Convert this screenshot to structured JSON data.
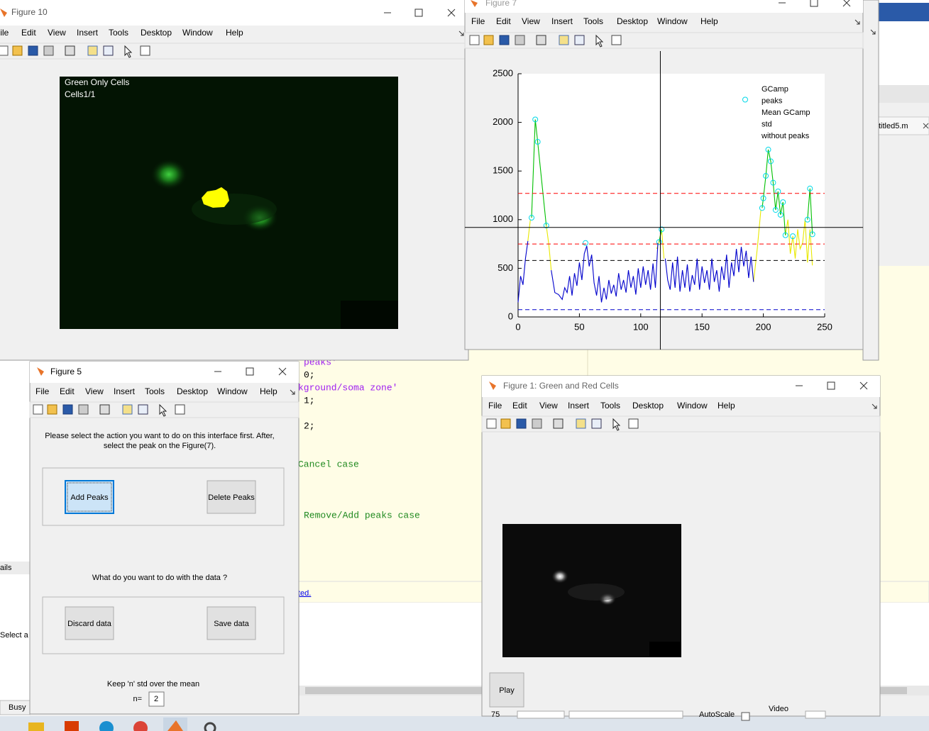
{
  "menu": [
    "File",
    "Edit",
    "View",
    "Insert",
    "Tools",
    "Desktop",
    "Window",
    "Help"
  ],
  "figure10": {
    "title": "Figure 10",
    "overlay": [
      "Green Only Cells",
      "Cells1/1"
    ]
  },
  "figure7": {
    "title": "Figure 7"
  },
  "chart_data": {
    "type": "line",
    "xlim": [
      0,
      250
    ],
    "xticks": [
      0,
      50,
      100,
      150,
      200,
      250
    ],
    "ylim": [
      0,
      2500
    ],
    "yticks": [
      0,
      500,
      1000,
      1500,
      2000,
      2500
    ],
    "legend": "northeast",
    "crosshair": {
      "x": 116,
      "y": 920
    },
    "series": [
      {
        "name": "GCamp",
        "color": "#e8e800",
        "x": [
          8,
          10,
          15,
          23,
          25,
          27,
          60,
          113,
          115,
          117,
          119,
          150,
          192,
          195,
          198,
          210,
          218,
          220,
          222,
          224,
          226,
          228,
          230,
          232,
          234,
          236,
          238,
          240
        ],
        "values": [
          780,
          1000,
          null,
          940,
          750,
          480,
          null,
          700,
          770,
          900,
          600,
          null,
          360,
          700,
          1100,
          null,
          840,
          1000,
          650,
          830,
          600,
          900,
          700,
          760,
          1000,
          560,
          900,
          530
        ]
      },
      {
        "name": "peaks",
        "color": "#00c000",
        "marker_color": "#00d8e8",
        "x": [
          11,
          14,
          16,
          23,
          40,
          55,
          80,
          115,
          117,
          150,
          199,
          200,
          202,
          204,
          206,
          208,
          210,
          212,
          214,
          216,
          218,
          221,
          224,
          230,
          236,
          238,
          240
        ],
        "values": [
          1020,
          2030,
          1800,
          940,
          null,
          760,
          null,
          770,
          900,
          null,
          1120,
          1220,
          1450,
          1720,
          1600,
          1380,
          1100,
          1290,
          1050,
          1180,
          840,
          null,
          830,
          null,
          1000,
          1320,
          850
        ]
      },
      {
        "name": "Mean GCamp",
        "color": "#000000",
        "hlines": [
          580
        ]
      },
      {
        "name": "std",
        "color": "#ff0000",
        "hlines": [
          750,
          1270
        ]
      },
      {
        "name": "without peaks",
        "color": "#0000cc",
        "hlines": [
          75
        ],
        "x": [
          0,
          2,
          4,
          6,
          8,
          10,
          27,
          30,
          33,
          36,
          38,
          40,
          42,
          44,
          46,
          48,
          50,
          52,
          54,
          56,
          58,
          60,
          62,
          64,
          66,
          68,
          70,
          72,
          74,
          76,
          78,
          80,
          82,
          84,
          86,
          88,
          90,
          92,
          94,
          96,
          98,
          100,
          102,
          104,
          106,
          108,
          110,
          112,
          114,
          116,
          120,
          122,
          124,
          126,
          128,
          130,
          132,
          134,
          136,
          138,
          140,
          142,
          144,
          146,
          148,
          150,
          152,
          154,
          156,
          158,
          160,
          162,
          164,
          166,
          168,
          170,
          172,
          174,
          176,
          178,
          180,
          182,
          184,
          186,
          188,
          190,
          192
        ],
        "values": [
          150,
          420,
          330,
          600,
          780,
          null,
          480,
          250,
          230,
          180,
          300,
          250,
          420,
          220,
          450,
          320,
          560,
          380,
          650,
          730,
          520,
          640,
          350,
          220,
          420,
          150,
          300,
          180,
          380,
          240,
          330,
          210,
          450,
          280,
          380,
          250,
          480,
          300,
          420,
          230,
          500,
          300,
          520,
          330,
          480,
          280,
          550,
          300,
          760,
          null,
          600,
          380,
          280,
          560,
          300,
          620,
          260,
          480,
          300,
          540,
          260,
          430,
          330,
          600,
          280,
          520,
          350,
          480,
          280,
          600,
          360,
          480,
          260,
          520,
          380,
          640,
          300,
          560,
          420,
          700,
          460,
          720,
          520,
          680,
          400,
          620,
          360
        ]
      }
    ]
  },
  "figure5": {
    "title": "Figure 5",
    "instruction": [
      "Please select the action you want to do on this interface first. After,",
      "select the peak on the Figure(7)."
    ],
    "action_buttons": [
      "Add Peaks",
      "Delete Peaks"
    ],
    "question": "What do you want to do with the data ?",
    "data_buttons": [
      "Discard data",
      "Save data"
    ],
    "keep_label": "Keep 'n' std over the mean",
    "n_label": "n=",
    "n_value": 2
  },
  "figure1": {
    "title": "Figure 1: Green and Red Cells",
    "play": "Play",
    "controls": [
      "75",
      "AutoScale",
      "Video"
    ]
  },
  "editor": {
    "code": [
      "peaks'",
      "0;",
      "kground/soma zone'",
      "1;",
      "2;",
      "Cancel case",
      "Remove/Add peaks case"
    ],
    "link": "ted.",
    "tab": "titled5.m",
    "side": [
      "ails",
      "Select a",
      "Busy"
    ]
  }
}
